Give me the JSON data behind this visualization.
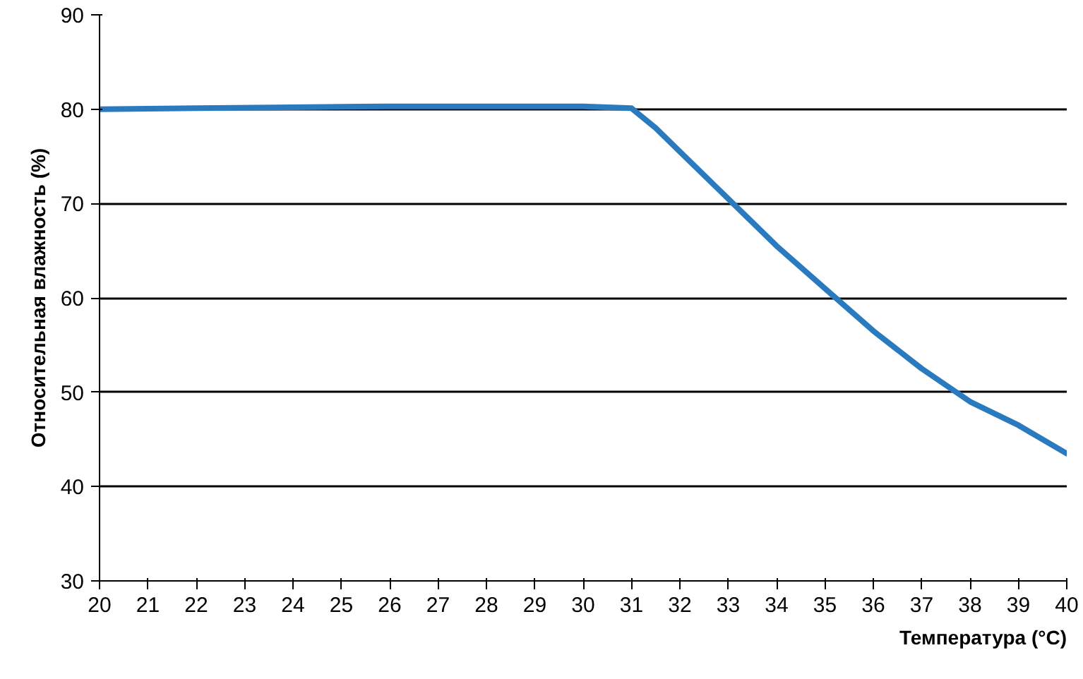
{
  "chart_data": {
    "type": "line",
    "xlabel": "Температура (°C)",
    "ylabel": "Относительная влажность (%)",
    "x": [
      20,
      22,
      24,
      26,
      28,
      30,
      31,
      31.5,
      32,
      33,
      34,
      35,
      36,
      37,
      38,
      39,
      40
    ],
    "series": [
      {
        "color": "#2a7abf",
        "values": [
          80,
          80.1,
          80.2,
          80.3,
          80.3,
          80.3,
          80.1,
          78,
          75.5,
          70.5,
          65.5,
          61,
          56.5,
          52.5,
          49,
          46.5,
          43.5
        ]
      }
    ],
    "xlim": [
      20,
      40
    ],
    "xticks": [
      20,
      21,
      22,
      23,
      24,
      25,
      26,
      27,
      28,
      29,
      30,
      31,
      32,
      33,
      34,
      35,
      36,
      37,
      38,
      39,
      40
    ],
    "ylim": [
      30,
      90
    ],
    "yticks": [
      30,
      40,
      50,
      60,
      70,
      80,
      90
    ],
    "grid": "y"
  }
}
